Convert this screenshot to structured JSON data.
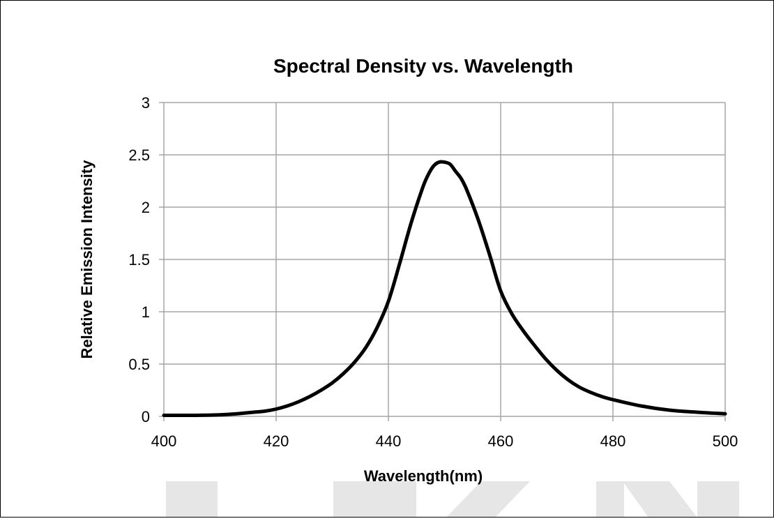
{
  "watermark": {
    "text": "LUMENS",
    "color": "#e6e6e6"
  },
  "chart_data": {
    "type": "line",
    "title": "Spectral Density vs. Wavelength",
    "xlabel": "Wavelength(nm)",
    "ylabel": "Relative Emission Intensity",
    "xlim": [
      400,
      500
    ],
    "ylim": [
      0,
      3
    ],
    "xticks": [
      400,
      420,
      440,
      460,
      480,
      500
    ],
    "yticks": [
      0,
      0.5,
      1,
      1.5,
      2,
      2.5,
      3
    ],
    "ytick_labels": [
      "0",
      "0.5",
      "1",
      "1.5",
      "2",
      "2.5",
      "3"
    ],
    "grid": true,
    "legend": "none",
    "line_color": "#000000",
    "grid_color": "#a6a6a6",
    "series": [
      {
        "x": [
          400,
          405,
          410,
          413,
          416,
          418,
          420,
          422,
          424,
          426,
          428,
          430,
          432,
          434,
          436,
          438,
          440,
          442,
          444,
          446,
          447,
          448,
          449,
          450,
          451,
          452,
          453,
          454,
          456,
          458,
          460,
          462,
          464,
          466,
          468,
          470,
          472,
          474,
          476,
          478,
          480,
          485,
          490,
          495,
          500
        ],
        "y": [
          0.01,
          0.01,
          0.015,
          0.025,
          0.04,
          0.05,
          0.07,
          0.1,
          0.14,
          0.19,
          0.25,
          0.32,
          0.41,
          0.52,
          0.66,
          0.85,
          1.1,
          1.46,
          1.84,
          2.17,
          2.3,
          2.39,
          2.43,
          2.43,
          2.41,
          2.34,
          2.27,
          2.16,
          1.88,
          1.55,
          1.2,
          0.98,
          0.82,
          0.68,
          0.55,
          0.44,
          0.35,
          0.28,
          0.23,
          0.19,
          0.16,
          0.1,
          0.06,
          0.04,
          0.025
        ]
      }
    ]
  }
}
